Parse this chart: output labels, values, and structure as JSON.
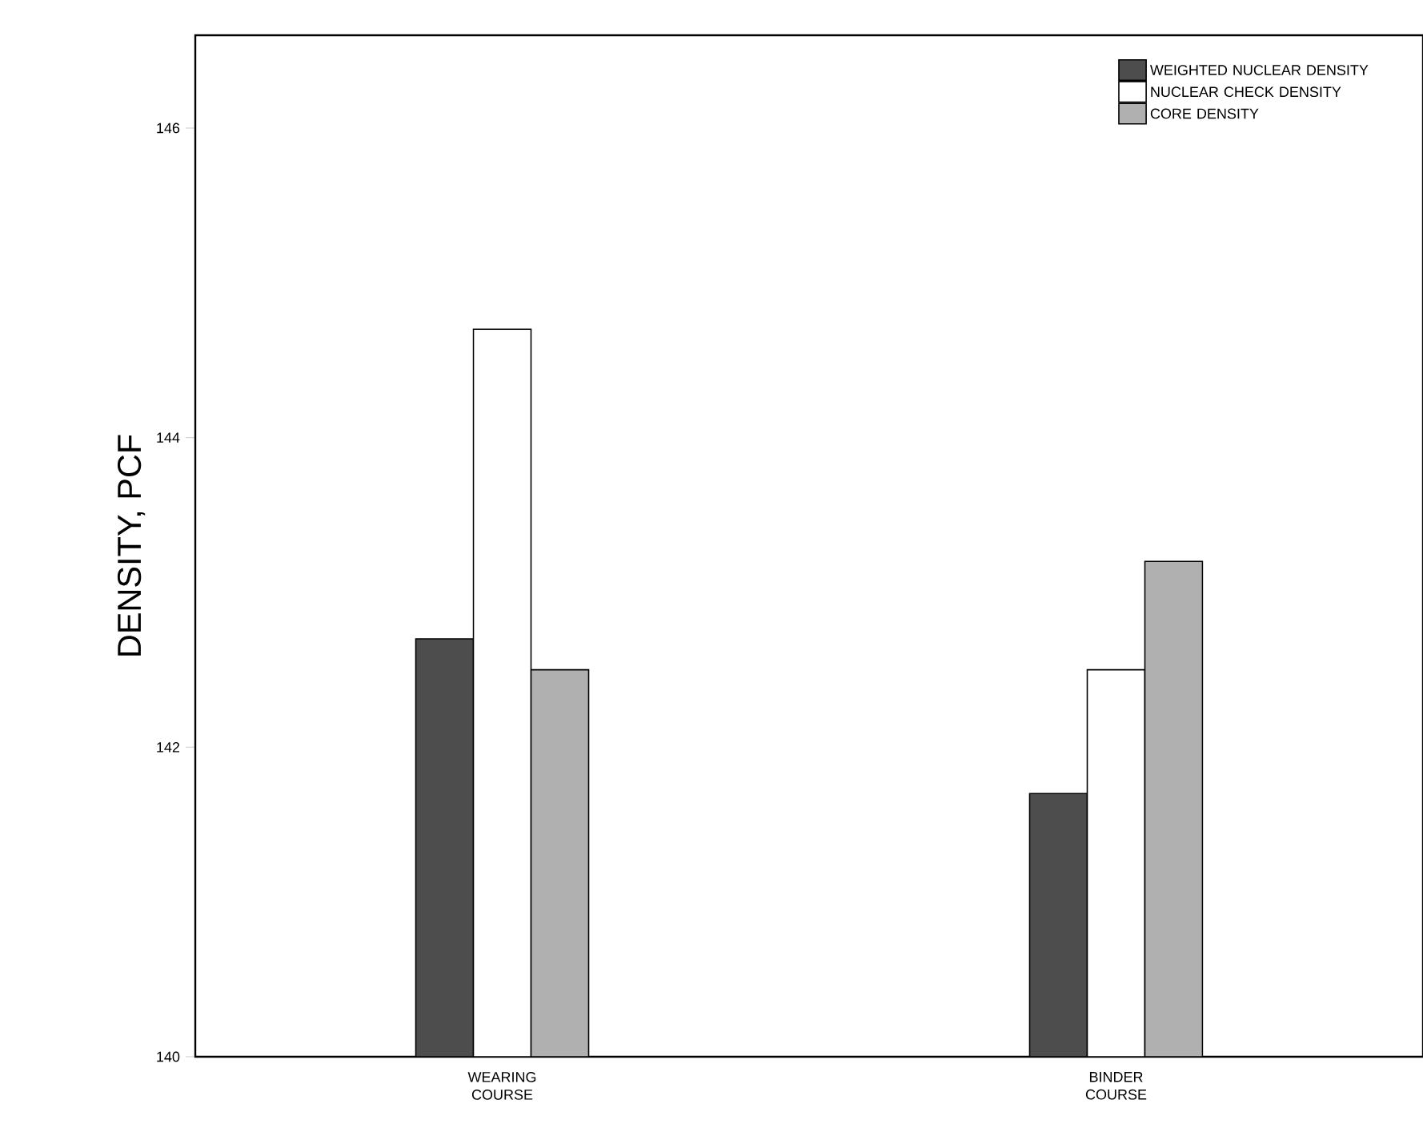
{
  "chart_data": {
    "type": "bar",
    "ylabel": "DENSITY, PCF",
    "categories": [
      "WEARING\nCOURSE",
      "BINDER\nCOURSE"
    ],
    "series": [
      {
        "name": "WEIGHTED NUCLEAR DENSITY",
        "color": "#4d4d4d",
        "values": [
          142.7,
          141.7
        ]
      },
      {
        "name": "NUCLEAR CHECK DENSITY",
        "color": "#ffffff",
        "values": [
          144.7,
          142.5
        ]
      },
      {
        "name": "CORE DENSITY",
        "color": "#b0b0b0",
        "values": [
          142.5,
          143.2
        ]
      }
    ],
    "ylim": [
      140,
      146.6
    ],
    "yticks": [
      140,
      142,
      144,
      146
    ],
    "legend": "top right"
  }
}
